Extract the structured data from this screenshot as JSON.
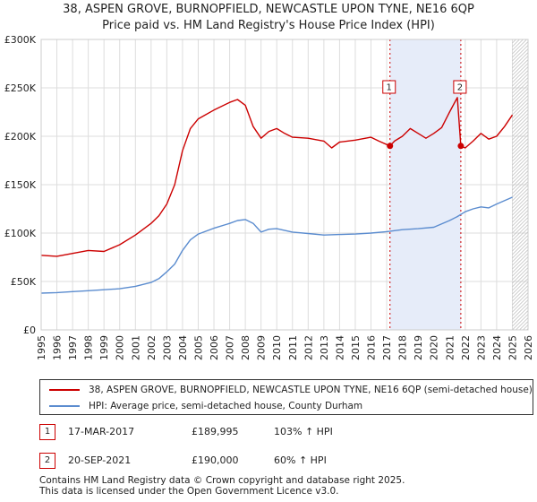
{
  "title_line1": "38, ASPEN GROVE, BURNOPFIELD, NEWCASTLE UPON TYNE, NE16 6QP",
  "title_line2": "Price paid vs. HM Land Registry's House Price Index (HPI)",
  "colors": {
    "property": "#cc0000",
    "hpi": "#5b8ccf",
    "shade": "#e6ecf9",
    "grid": "#dddddd"
  },
  "legend": {
    "property_label": "38, ASPEN GROVE, BURNOPFIELD, NEWCASTLE UPON TYNE, NE16 6QP (semi-detached house)",
    "hpi_label": "HPI: Average price, semi-detached house, County Durham"
  },
  "sales": [
    {
      "num": "1",
      "date": "17-MAR-2017",
      "price": "£189,995",
      "hpi": "103% ↑ HPI"
    },
    {
      "num": "2",
      "date": "20-SEP-2021",
      "price": "£190,000",
      "hpi": "60% ↑ HPI"
    }
  ],
  "footer_line1": "Contains HM Land Registry data © Crown copyright and database right 2025.",
  "footer_line2": "This data is licensed under the Open Government Licence v3.0.",
  "chart_data": {
    "type": "line",
    "xlim": [
      1995,
      2026
    ],
    "ylim": [
      0,
      300000
    ],
    "y_ticks": [
      0,
      50000,
      100000,
      150000,
      200000,
      250000,
      300000
    ],
    "y_tick_labels": [
      "£0",
      "£50K",
      "£100K",
      "£150K",
      "£200K",
      "£250K",
      "£300K"
    ],
    "x_ticks": [
      1995,
      1996,
      1997,
      1998,
      1999,
      2000,
      2001,
      2002,
      2003,
      2004,
      2005,
      2006,
      2007,
      2008,
      2009,
      2010,
      2011,
      2012,
      2013,
      2014,
      2015,
      2016,
      2017,
      2018,
      2019,
      2020,
      2021,
      2022,
      2023,
      2024,
      2025,
      2026
    ],
    "shaded_range": [
      2017.21,
      2021.72
    ],
    "projection_start": 2025.0,
    "sale_markers": [
      {
        "label": "1",
        "x": 2017.21,
        "y": 189995
      },
      {
        "label": "2",
        "x": 2021.72,
        "y": 190000
      }
    ],
    "series": [
      {
        "name": "38, ASPEN GROVE, BURNOPFIELD, NEWCASTLE UPON TYNE, NE16 6QP (semi-detached house)",
        "color": "#cc0000",
        "points": [
          [
            1995,
            77000
          ],
          [
            1996,
            76000
          ],
          [
            1997,
            79000
          ],
          [
            1998,
            82000
          ],
          [
            1999,
            81000
          ],
          [
            2000,
            88000
          ],
          [
            2001,
            98000
          ],
          [
            2002,
            110000
          ],
          [
            2002.5,
            118000
          ],
          [
            2003,
            130000
          ],
          [
            2003.5,
            150000
          ],
          [
            2004,
            185000
          ],
          [
            2004.5,
            208000
          ],
          [
            2005,
            218000
          ],
          [
            2006,
            227000
          ],
          [
            2007,
            235000
          ],
          [
            2007.5,
            238000
          ],
          [
            2008,
            232000
          ],
          [
            2008.5,
            210000
          ],
          [
            2009,
            198000
          ],
          [
            2009.5,
            205000
          ],
          [
            2010,
            208000
          ],
          [
            2010.5,
            203000
          ],
          [
            2011,
            199000
          ],
          [
            2012,
            198000
          ],
          [
            2013,
            195000
          ],
          [
            2013.5,
            188000
          ],
          [
            2014,
            194000
          ],
          [
            2015,
            196000
          ],
          [
            2016,
            199000
          ],
          [
            2016.5,
            195000
          ],
          [
            2017.21,
            189995
          ],
          [
            2017.5,
            195000
          ],
          [
            2018,
            200000
          ],
          [
            2018.5,
            208000
          ],
          [
            2019,
            203000
          ],
          [
            2019.5,
            198000
          ],
          [
            2020,
            203000
          ],
          [
            2020.5,
            209000
          ],
          [
            2021,
            225000
          ],
          [
            2021.5,
            240000
          ],
          [
            2021.72,
            190000
          ],
          [
            2022,
            188000
          ],
          [
            2022.5,
            195000
          ],
          [
            2023,
            203000
          ],
          [
            2023.5,
            197000
          ],
          [
            2024,
            200000
          ],
          [
            2024.5,
            210000
          ],
          [
            2025,
            222000
          ]
        ]
      },
      {
        "name": "HPI: Average price, semi-detached house, County Durham",
        "color": "#5b8ccf",
        "points": [
          [
            1995,
            38000
          ],
          [
            1996,
            38500
          ],
          [
            1997,
            39500
          ],
          [
            1998,
            40500
          ],
          [
            1999,
            41500
          ],
          [
            2000,
            42500
          ],
          [
            2001,
            45000
          ],
          [
            2002,
            49000
          ],
          [
            2002.5,
            53000
          ],
          [
            2003,
            60000
          ],
          [
            2003.5,
            68000
          ],
          [
            2004,
            82000
          ],
          [
            2004.5,
            93000
          ],
          [
            2005,
            99000
          ],
          [
            2006,
            105000
          ],
          [
            2007,
            110000
          ],
          [
            2007.5,
            113000
          ],
          [
            2008,
            114000
          ],
          [
            2008.5,
            110000
          ],
          [
            2009,
            101000
          ],
          [
            2009.5,
            104000
          ],
          [
            2010,
            104500
          ],
          [
            2011,
            101000
          ],
          [
            2012,
            99500
          ],
          [
            2013,
            98000
          ],
          [
            2014,
            98500
          ],
          [
            2015,
            99000
          ],
          [
            2016,
            100000
          ],
          [
            2017,
            101500
          ],
          [
            2017.5,
            102500
          ],
          [
            2018,
            103500
          ],
          [
            2019,
            104500
          ],
          [
            2020,
            106000
          ],
          [
            2021,
            113000
          ],
          [
            2021.5,
            117000
          ],
          [
            2022,
            122000
          ],
          [
            2022.5,
            125000
          ],
          [
            2023,
            127000
          ],
          [
            2023.5,
            126000
          ],
          [
            2024,
            130000
          ],
          [
            2025,
            137000
          ]
        ]
      }
    ]
  }
}
